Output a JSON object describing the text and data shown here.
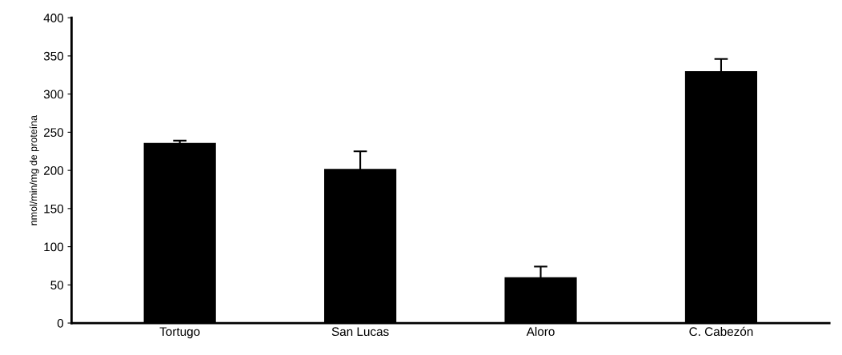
{
  "chart_data": {
    "type": "bar",
    "ylabel": "nmol/min/mg de proteína",
    "categories": [
      "Tortugo",
      "San Lucas",
      "Aloro",
      "C. Cabezón"
    ],
    "values": [
      236,
      202,
      60,
      330
    ],
    "errors": [
      3,
      23,
      14,
      16
    ],
    "color": "#000000",
    "ylim": [
      0,
      400
    ],
    "yticks": [
      0,
      50,
      100,
      150,
      200,
      250,
      300,
      350,
      400
    ],
    "grid": false
  }
}
